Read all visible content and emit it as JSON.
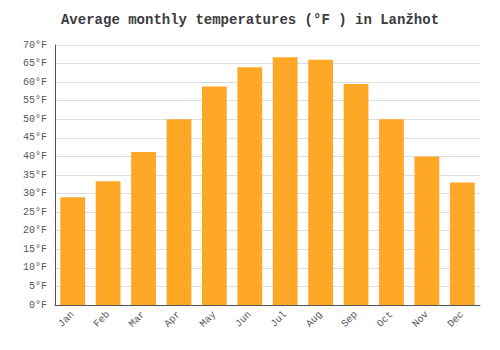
{
  "chart_data": {
    "type": "bar",
    "title": "Average monthly temperatures (°F ) in Lanžhot",
    "categories": [
      "Jan",
      "Feb",
      "Mar",
      "Apr",
      "May",
      "Jun",
      "Jul",
      "Aug",
      "Sep",
      "Oct",
      "Nov",
      "Dec"
    ],
    "values": [
      29.0,
      33.3,
      41.2,
      50.0,
      58.8,
      64.0,
      66.7,
      66.0,
      59.5,
      50.0,
      40.0,
      33.0
    ],
    "color": "#FFA726",
    "ylim": [
      0,
      70
    ],
    "yticks": [
      {
        "value": 0,
        "label": "0°F"
      },
      {
        "value": 5,
        "label": "5°F"
      },
      {
        "value": 10,
        "label": "10°F"
      },
      {
        "value": 15,
        "label": "15°F"
      },
      {
        "value": 20,
        "label": "20°F"
      },
      {
        "value": 25,
        "label": "25°F"
      },
      {
        "value": 30,
        "label": "30°F"
      },
      {
        "value": 35,
        "label": "35°F"
      },
      {
        "value": 40,
        "label": "40°F"
      },
      {
        "value": 45,
        "label": "45°F"
      },
      {
        "value": 50,
        "label": "50°F"
      },
      {
        "value": 55,
        "label": "55°F"
      },
      {
        "value": 60,
        "label": "60°F"
      },
      {
        "value": 65,
        "label": "65°F"
      },
      {
        "value": 70,
        "label": "70°F"
      }
    ],
    "grid": true
  }
}
